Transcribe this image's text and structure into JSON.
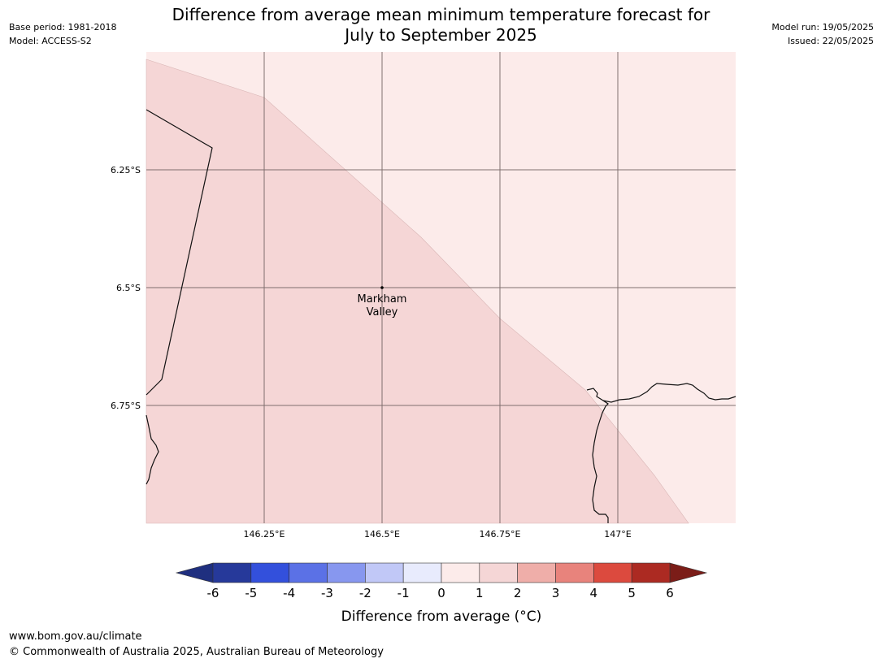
{
  "header": {
    "base_period": "Base period: 1981-2018",
    "model": "Model: ACCESS-S2",
    "model_run": "Model run: 19/05/2025",
    "issued": "Issued: 22/05/2025",
    "title_line1": "Difference from average mean minimum temperature forecast for",
    "title_line2": "July to September 2025"
  },
  "map": {
    "lon_ticks": [
      "146.25°E",
      "146.5°E",
      "146.75°E",
      "147°E"
    ],
    "lat_ticks": [
      "6.25°S",
      "6.5°S",
      "6.75°S"
    ],
    "place_label_line1": "Markham",
    "place_label_line2": "Valley",
    "region_colors": {
      "band_0_to_1": "#fcebea",
      "band_1_to_2": "#f5d6d6"
    }
  },
  "colorbar": {
    "ticks": [
      "-6",
      "-5",
      "-4",
      "-3",
      "-2",
      "-1",
      "0",
      "1",
      "2",
      "3",
      "4",
      "5",
      "6"
    ],
    "colors": [
      "#26399a",
      "#3350dc",
      "#5b71e6",
      "#8797ef",
      "#c1c8f7",
      "#e8ebfd",
      "#fcebea",
      "#f5d6d6",
      "#efaea9",
      "#e8837c",
      "#dc4a3e",
      "#ac2a22"
    ],
    "low_extend_color": "#1f2f7f",
    "high_extend_color": "#7b1d18",
    "label": "Difference from average (°C)"
  },
  "footer": {
    "url": "www.bom.gov.au/climate",
    "copyright": "© Commonwealth of Australia 2025, Australian Bureau of Meteorology"
  }
}
